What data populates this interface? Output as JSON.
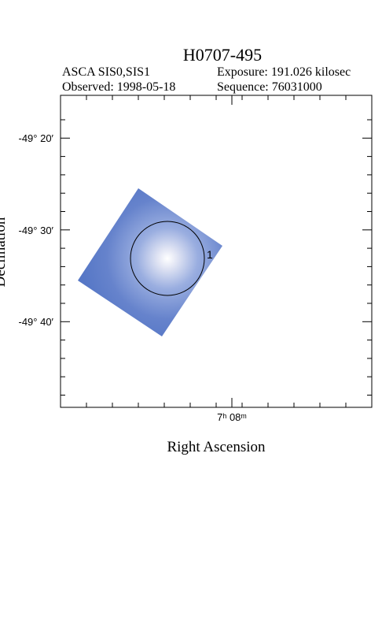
{
  "header": {
    "title": "H0707-495",
    "instrument": "ASCA SIS0,SIS1",
    "exposure": "Exposure: 191.026 kilosec",
    "observed": "Observed: 1998-05-18",
    "sequence": "Sequence: 76031000"
  },
  "axes": {
    "y_label": "Declination",
    "x_label": "Right Ascension",
    "y_ticks": [
      "-49° 20′",
      "-49° 30′",
      "-49° 40′"
    ],
    "x_ticks": [
      "7ʰ 08ᵐ"
    ]
  },
  "regions": [
    {
      "label": "1"
    }
  ]
}
